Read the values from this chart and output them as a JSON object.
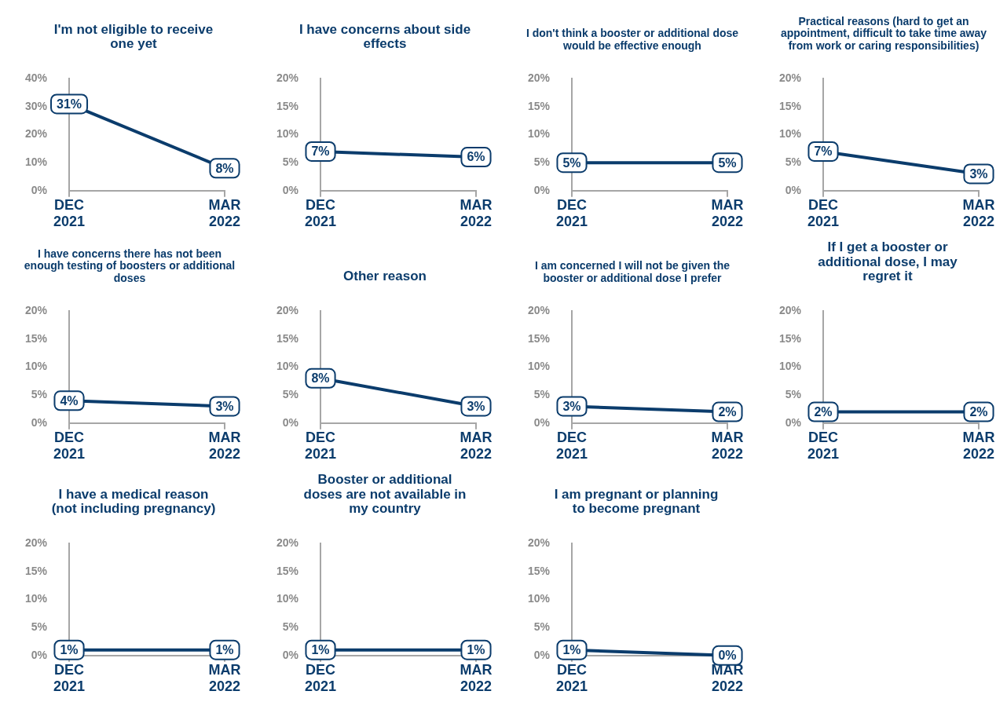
{
  "chart_data": [
    {
      "type": "line",
      "title": "I'm not eligible to receive one yet",
      "categories": [
        "DEC 2021",
        "MAR 2022"
      ],
      "values": [
        31,
        8
      ],
      "value_labels": [
        "31%",
        "8%"
      ],
      "color": "#0b3c6c",
      "marker": "square",
      "ylim": [
        0,
        40
      ],
      "yticks": [
        {
          "value": 0,
          "label": "0%"
        },
        {
          "value": 10,
          "label": "10%"
        },
        {
          "value": 20,
          "label": "20%"
        },
        {
          "value": 30,
          "label": "30%"
        },
        {
          "value": 40,
          "label": "40%"
        }
      ]
    },
    {
      "type": "line",
      "title": "I have concerns about side effects",
      "categories": [
        "DEC 2021",
        "MAR 2022"
      ],
      "values": [
        7,
        6
      ],
      "value_labels": [
        "7%",
        "6%"
      ],
      "color": "#0b3c6c",
      "marker": "square",
      "ylim": [
        0,
        20
      ],
      "yticks": [
        {
          "value": 0,
          "label": "0%"
        },
        {
          "value": 5,
          "label": "5%"
        },
        {
          "value": 10,
          "label": "10%"
        },
        {
          "value": 15,
          "label": "15%"
        },
        {
          "value": 20,
          "label": "20%"
        }
      ]
    },
    {
      "type": "line",
      "title": "I don't think a booster or additional dose would be effective enough",
      "categories": [
        "DEC 2021",
        "MAR 2022"
      ],
      "values": [
        5,
        5
      ],
      "value_labels": [
        "5%",
        "5%"
      ],
      "color": "#0b3c6c",
      "marker": "square",
      "ylim": [
        0,
        20
      ],
      "yticks": [
        {
          "value": 0,
          "label": "0%"
        },
        {
          "value": 5,
          "label": "5%"
        },
        {
          "value": 10,
          "label": "10%"
        },
        {
          "value": 15,
          "label": "15%"
        },
        {
          "value": 20,
          "label": "20%"
        }
      ]
    },
    {
      "type": "line",
      "title": "Practical reasons (hard to get an appointment, difficult to take time away from work or caring responsibilities)",
      "categories": [
        "DEC 2021",
        "MAR 2022"
      ],
      "values": [
        7,
        3
      ],
      "value_labels": [
        "7%",
        "3%"
      ],
      "color": "#0b3c6c",
      "marker": "square",
      "ylim": [
        0,
        20
      ],
      "yticks": [
        {
          "value": 0,
          "label": "0%"
        },
        {
          "value": 5,
          "label": "5%"
        },
        {
          "value": 10,
          "label": "10%"
        },
        {
          "value": 15,
          "label": "15%"
        },
        {
          "value": 20,
          "label": "20%"
        }
      ]
    },
    {
      "type": "line",
      "title": "I have concerns there has not been enough testing of boosters or additional doses",
      "categories": [
        "DEC 2021",
        "MAR 2022"
      ],
      "values": [
        4,
        3
      ],
      "value_labels": [
        "4%",
        "3%"
      ],
      "color": "#0b3c6c",
      "marker": "square",
      "ylim": [
        0,
        20
      ],
      "yticks": [
        {
          "value": 0,
          "label": "0%"
        },
        {
          "value": 5,
          "label": "5%"
        },
        {
          "value": 10,
          "label": "10%"
        },
        {
          "value": 15,
          "label": "15%"
        },
        {
          "value": 20,
          "label": "20%"
        }
      ]
    },
    {
      "type": "line",
      "title": "Other reason",
      "categories": [
        "DEC 2021",
        "MAR 2022"
      ],
      "values": [
        8,
        3
      ],
      "value_labels": [
        "8%",
        "3%"
      ],
      "color": "#0b3c6c",
      "marker": "square",
      "ylim": [
        0,
        20
      ],
      "yticks": [
        {
          "value": 0,
          "label": "0%"
        },
        {
          "value": 5,
          "label": "5%"
        },
        {
          "value": 10,
          "label": "10%"
        },
        {
          "value": 15,
          "label": "15%"
        },
        {
          "value": 20,
          "label": "20%"
        }
      ]
    },
    {
      "type": "line",
      "title": "I am concerned I will not be given the booster or additional dose I prefer",
      "categories": [
        "DEC 2021",
        "MAR 2022"
      ],
      "values": [
        3,
        2
      ],
      "value_labels": [
        "3%",
        "2%"
      ],
      "color": "#0b3c6c",
      "marker": "square",
      "ylim": [
        0,
        20
      ],
      "yticks": [
        {
          "value": 0,
          "label": "0%"
        },
        {
          "value": 5,
          "label": "5%"
        },
        {
          "value": 10,
          "label": "10%"
        },
        {
          "value": 15,
          "label": "15%"
        },
        {
          "value": 20,
          "label": "20%"
        }
      ]
    },
    {
      "type": "line",
      "title": "If I get a booster or additional dose, I may regret it",
      "categories": [
        "DEC 2021",
        "MAR 2022"
      ],
      "values": [
        2,
        2
      ],
      "value_labels": [
        "2%",
        "2%"
      ],
      "color": "#0b3c6c",
      "marker": "square",
      "ylim": [
        0,
        20
      ],
      "yticks": [
        {
          "value": 0,
          "label": "0%"
        },
        {
          "value": 5,
          "label": "5%"
        },
        {
          "value": 10,
          "label": "10%"
        },
        {
          "value": 15,
          "label": "15%"
        },
        {
          "value": 20,
          "label": "20%"
        }
      ]
    },
    {
      "type": "line",
      "title": "I have a medical reason (not including pregnancy)",
      "categories": [
        "DEC 2021",
        "MAR 2022"
      ],
      "values": [
        1,
        1
      ],
      "value_labels": [
        "1%",
        "1%"
      ],
      "color": "#0b3c6c",
      "marker": "square",
      "ylim": [
        0,
        20
      ],
      "yticks": [
        {
          "value": 0,
          "label": "0%"
        },
        {
          "value": 5,
          "label": "5%"
        },
        {
          "value": 10,
          "label": "10%"
        },
        {
          "value": 15,
          "label": "15%"
        },
        {
          "value": 20,
          "label": "20%"
        }
      ]
    },
    {
      "type": "line",
      "title": "Booster or additional doses are not available in my country",
      "categories": [
        "DEC 2021",
        "MAR 2022"
      ],
      "values": [
        1,
        1
      ],
      "value_labels": [
        "1%",
        "1%"
      ],
      "color": "#0b3c6c",
      "marker": "square",
      "ylim": [
        0,
        20
      ],
      "yticks": [
        {
          "value": 0,
          "label": "0%"
        },
        {
          "value": 5,
          "label": "5%"
        },
        {
          "value": 10,
          "label": "10%"
        },
        {
          "value": 15,
          "label": "15%"
        },
        {
          "value": 20,
          "label": "20%"
        }
      ]
    },
    {
      "type": "line",
      "title": "I am pregnant or planning to become pregnant",
      "categories": [
        "DEC 2021",
        "MAR 2022"
      ],
      "values": [
        1,
        0
      ],
      "value_labels": [
        "1%",
        "0%"
      ],
      "color": "#0b3c6c",
      "marker": "square",
      "ylim": [
        0,
        20
      ],
      "yticks": [
        {
          "value": 0,
          "label": "0%"
        },
        {
          "value": 5,
          "label": "5%"
        },
        {
          "value": 10,
          "label": "10%"
        },
        {
          "value": 15,
          "label": "15%"
        },
        {
          "value": 20,
          "label": "20%"
        }
      ]
    }
  ]
}
